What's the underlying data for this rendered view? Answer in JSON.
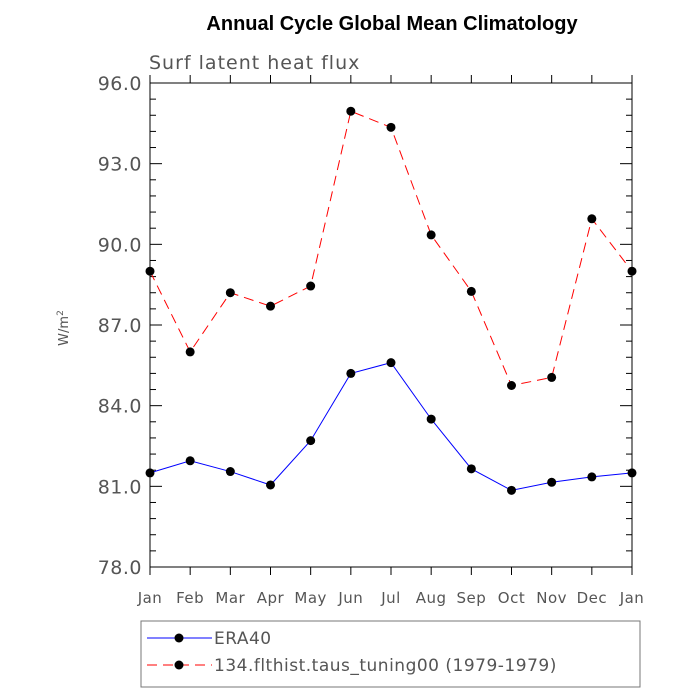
{
  "chart_data": {
    "type": "line",
    "title": "Annual Cycle Global Mean Climatology",
    "subtitle": "Surf latent heat flux",
    "ylabel": "W/m",
    "ylabel_sup": "2",
    "xlabel": "",
    "ylim": [
      78.0,
      96.0
    ],
    "yticks": [
      "78.0",
      "81.0",
      "84.0",
      "87.0",
      "90.0",
      "93.0",
      "96.0"
    ],
    "categories": [
      "Jan",
      "Feb",
      "Mar",
      "Apr",
      "May",
      "Jun",
      "Jul",
      "Aug",
      "Sep",
      "Oct",
      "Nov",
      "Dec",
      "Jan"
    ],
    "legend_position": "bottom",
    "series": [
      {
        "name": "ERA40",
        "color": "#0000ff",
        "dash": "solid",
        "values": [
          81.5,
          81.95,
          81.55,
          81.05,
          82.7,
          85.2,
          85.6,
          83.5,
          81.65,
          80.85,
          81.15,
          81.35,
          81.5
        ]
      },
      {
        "name": "134.flthist.taus_tuning00 (1979-1979)",
        "color": "#ff0000",
        "dash": "dashed",
        "values": [
          89.0,
          86.0,
          88.2,
          87.7,
          88.45,
          94.95,
          94.35,
          90.35,
          88.25,
          84.75,
          85.05,
          90.95,
          89.0
        ]
      }
    ]
  }
}
